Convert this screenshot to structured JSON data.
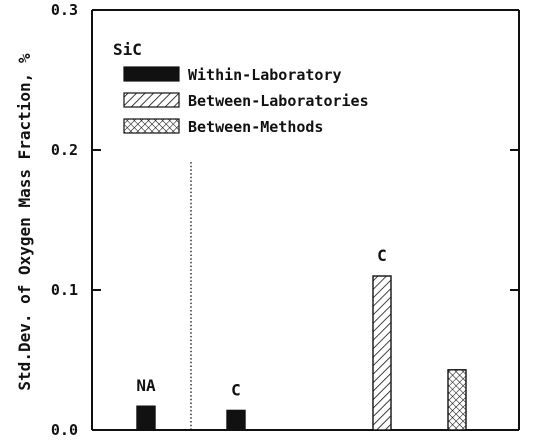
{
  "chart_data": {
    "type": "bar",
    "title": "",
    "subset_label": "SiC",
    "xlabel": "",
    "ylabel": "Std.Dev. of Oxygen Mass Fraction, %",
    "ylim": [
      0,
      0.3
    ],
    "yticks": [
      "0.0",
      "0.1",
      "0.2",
      "0.3"
    ],
    "ytick_values": [
      0,
      0.1,
      0.2,
      0.3
    ],
    "legend_position": "top-left",
    "grid": false,
    "series": [
      {
        "name": "Within-Laboratory",
        "pattern": "solid",
        "color": "#111111"
      },
      {
        "name": "Between-Laboratories",
        "pattern": "diagonal-hatch",
        "color": "#111111"
      },
      {
        "name": "Between-Methods",
        "pattern": "cross-hatch",
        "color": "#111111"
      }
    ],
    "bars": [
      {
        "series": "Within-Laboratory",
        "value": 0.017,
        "label": "NA"
      },
      {
        "series": "Within-Laboratory",
        "value": 0.014,
        "label": "C"
      },
      {
        "series": "Between-Laboratories",
        "value": 0.11,
        "label": "C"
      },
      {
        "series": "Between-Methods",
        "value": 0.043,
        "label": ""
      }
    ]
  }
}
